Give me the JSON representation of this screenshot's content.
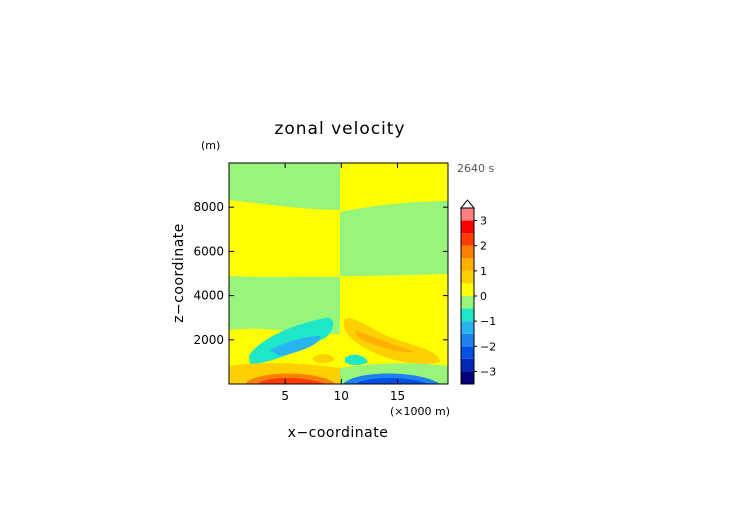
{
  "chart_data": {
    "type": "heatmap",
    "title": "zonal velocity",
    "xlabel": "x−coordinate",
    "ylabel": "z−coordinate",
    "x_unit_label": "(×1000 m)",
    "y_unit_label": "(m)",
    "time_label": "2640 s",
    "xlim": [
      0,
      19.5
    ],
    "ylim": [
      0,
      10000
    ],
    "x_ticks": [
      5,
      10,
      15
    ],
    "x_tick_labels": [
      "5",
      "10",
      "15"
    ],
    "y_ticks": [
      2000,
      4000,
      6000,
      8000
    ],
    "y_tick_labels": [
      "2000",
      "4000",
      "6000",
      "8000"
    ],
    "colorbar": {
      "levels": [
        -3.5,
        -3,
        -2.5,
        -2,
        -1.5,
        -1,
        -0.5,
        0,
        0.5,
        1,
        1.5,
        2,
        2.5,
        3,
        3.5
      ],
      "colors": [
        "#00007a",
        "#0028b4",
        "#0050e6",
        "#1e82f0",
        "#28b4f0",
        "#1ee6c8",
        "#96f57a",
        "#ffff00",
        "#ffd000",
        "#ffb000",
        "#ff8000",
        "#ff3c00",
        "#ff0000",
        "#ff8080",
        "#ffb8b8"
      ],
      "tick_values": [
        3,
        2,
        1,
        0,
        -1,
        -2,
        -3
      ],
      "tick_labels": [
        "3",
        "2",
        "1",
        "0",
        "−1",
        "−2",
        "−3"
      ],
      "extend": "max"
    },
    "regions": [
      {
        "name": "upper-left band",
        "value": -0.25,
        "x": [
          0,
          10
        ],
        "z": [
          8300,
          10000
        ]
      },
      {
        "name": "upper-right band",
        "value": 0.25,
        "x": [
          10,
          19.5
        ],
        "z": [
          8100,
          10000
        ]
      },
      {
        "name": "mid-left band",
        "value": 0.25,
        "x": [
          0,
          10
        ],
        "z": [
          4900,
          8300
        ]
      },
      {
        "name": "mid-right band",
        "value": -0.25,
        "x": [
          10,
          19.5
        ],
        "z": [
          4900,
          8100
        ]
      },
      {
        "name": "lower-left band",
        "value": -0.25,
        "x": [
          0,
          10
        ],
        "z": [
          0,
          4900
        ]
      },
      {
        "name": "lower-right band",
        "value": 0.25,
        "x": [
          10,
          19.5
        ],
        "z": [
          0,
          4900
        ]
      },
      {
        "name": "left jet core",
        "value": -0.75,
        "x": [
          1,
          9
        ],
        "z": [
          1000,
          3000
        ]
      },
      {
        "name": "right jet core",
        "value": 0.75,
        "x": [
          11,
          19
        ],
        "z": [
          1000,
          3000
        ]
      },
      {
        "name": "left surface max",
        "value": 2.5,
        "x": [
          2,
          9
        ],
        "z": [
          0,
          300
        ]
      },
      {
        "name": "right surface min",
        "value": -2.5,
        "x": [
          11,
          18
        ],
        "z": [
          0,
          300
        ]
      }
    ]
  }
}
